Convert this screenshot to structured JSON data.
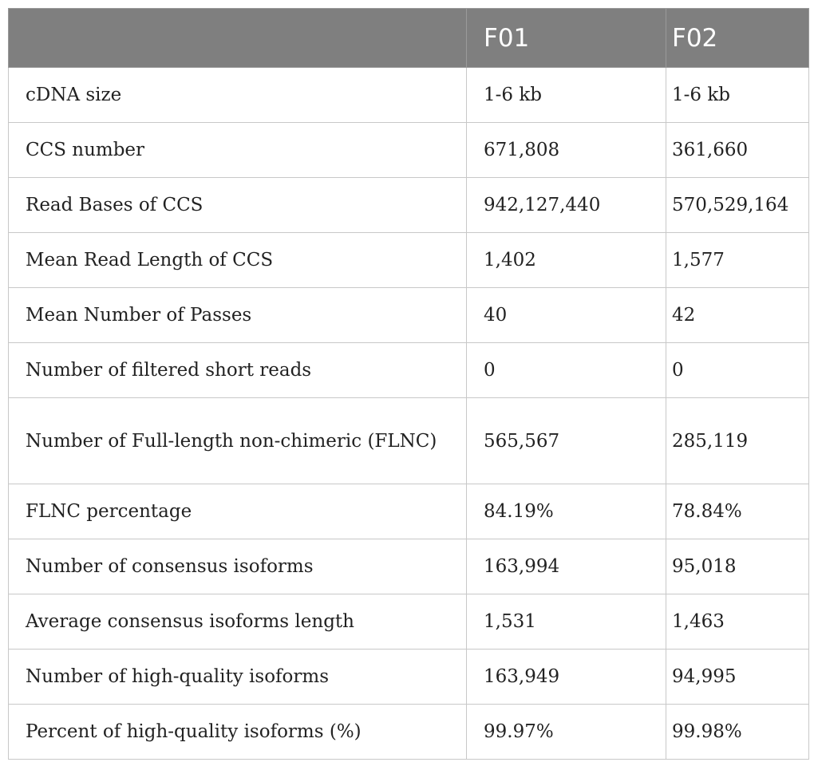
{
  "table": {
    "columns": [
      "",
      "F01",
      "F02"
    ],
    "rows": [
      [
        "cDNA size",
        "1-6 kb",
        "1-6 kb"
      ],
      [
        "CCS number",
        "671,808",
        "361,660"
      ],
      [
        "Read Bases of CCS",
        "942,127,440",
        "570,529,164"
      ],
      [
        "Mean Read Length of CCS",
        "1,402",
        "1,577"
      ],
      [
        "Mean Number of Passes",
        "40",
        "42"
      ],
      [
        "Number of filtered short reads",
        "0",
        "0"
      ],
      [
        "Number of Full-length non-chimeric (FLNC)",
        "565,567",
        "285,119"
      ],
      [
        "FLNC percentage",
        "84.19%",
        "78.84%"
      ],
      [
        "Number of consensus isoforms",
        "163,994",
        "95,018"
      ],
      [
        "Average consensus isoforms length",
        "1,531",
        "1,463"
      ],
      [
        "Number of high-quality isoforms",
        "163,949",
        "94,995"
      ],
      [
        "Percent of high-quality isoforms (%)",
        "99.97%",
        "99.98%"
      ]
    ]
  }
}
